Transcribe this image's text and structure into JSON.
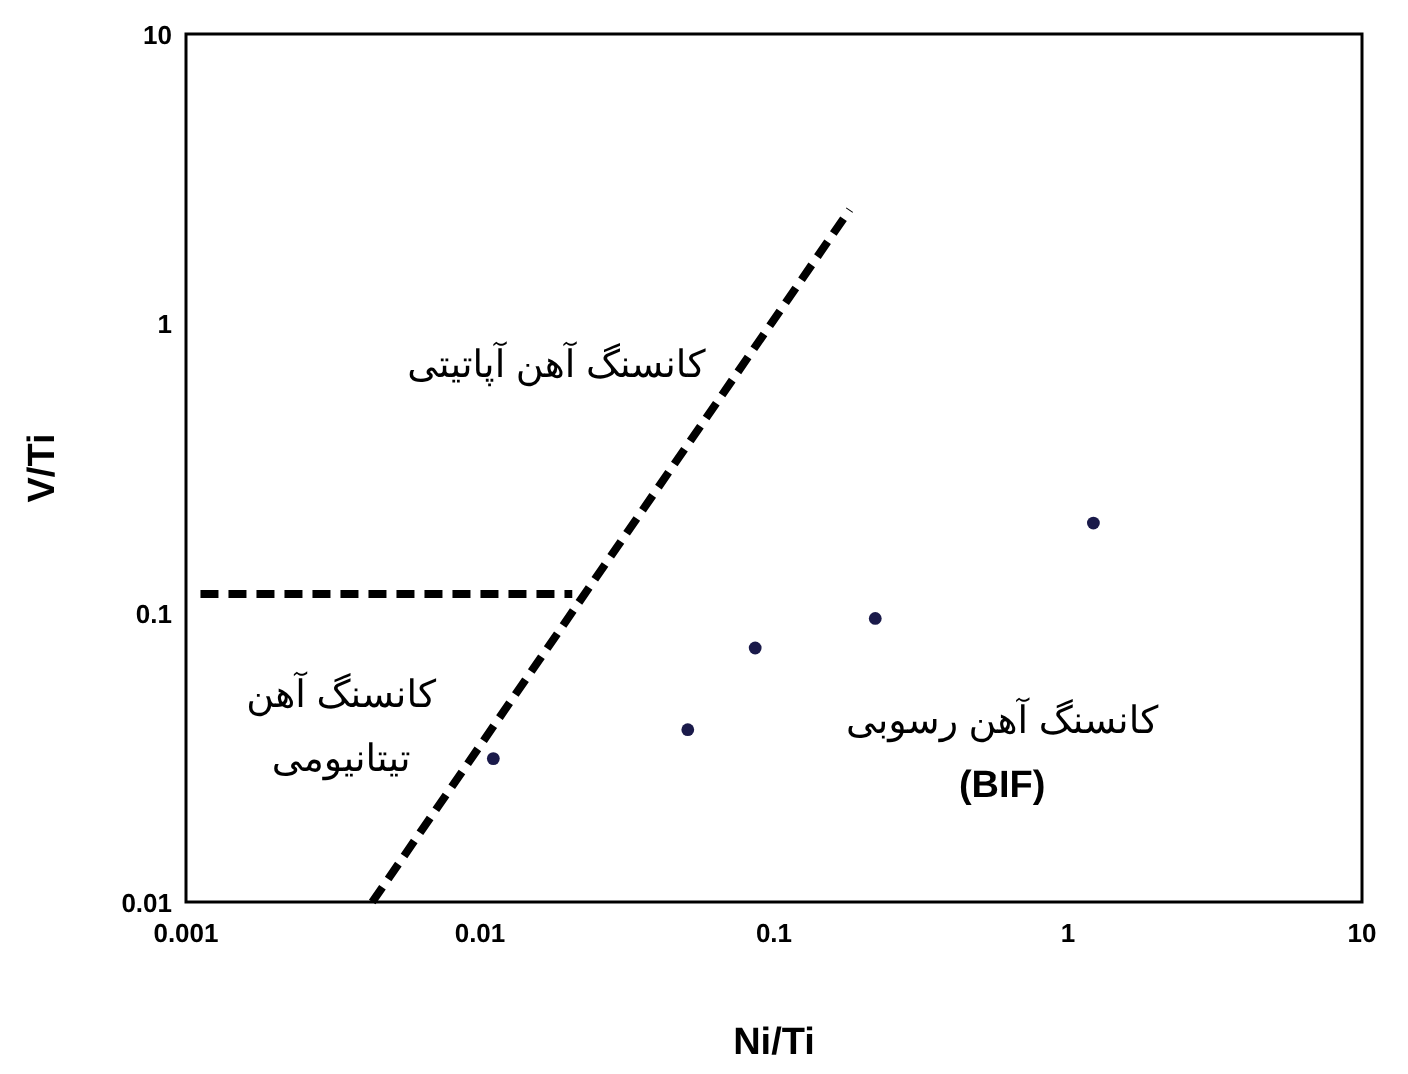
{
  "chart_data": {
    "type": "scatter",
    "xlabel": "Ni/Ti",
    "ylabel": "V/Ti",
    "log": "xy",
    "xlim": [
      0.001,
      10
    ],
    "ylim": [
      0.01,
      10
    ],
    "xticks": [
      0.001,
      0.01,
      0.1,
      1,
      10
    ],
    "yticks": [
      0.01,
      0.1,
      1,
      10
    ],
    "grid": false,
    "series": [
      {
        "color": "#1a1a4a",
        "marker": "circle",
        "x": [
          0.0111,
          0.0509,
          0.0863,
          0.221,
          1.22
        ],
        "values": [
          0.0313,
          0.0394,
          0.0755,
          0.0955,
          0.204
        ]
      },
      {
        "type": "line",
        "color": "#000000",
        "line_style": "dashed",
        "x": [
          0.0043,
          0.181
        ],
        "values": [
          0.01,
          2.47
        ]
      },
      {
        "type": "line",
        "color": "#000000",
        "line_style": "dashed",
        "x": [
          0.00112,
          0.0206
        ],
        "values": [
          0.116,
          0.116
        ]
      }
    ],
    "annotations": [
      "کانسنگ آهن آپاتیتی",
      "کانسنگ آهن\nتیتانیومی",
      "کانسنگ آهن رسوبی\n(BIF)"
    ]
  }
}
